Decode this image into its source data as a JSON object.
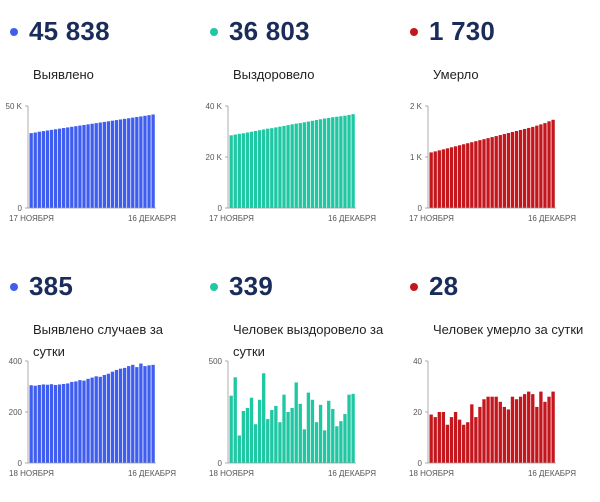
{
  "panels": [
    {
      "id": "detected-total",
      "value": "45 838",
      "label": "Выявлено",
      "color": "#3f5ef0",
      "chart_data": {
        "type": "bar",
        "x_start_label": "17 НОЯБРЯ",
        "x_end_label": "16 ДЕКАБРЯ",
        "yticks": [
          "0",
          "50 K"
        ],
        "ylim": [
          0,
          50000
        ],
        "values": [
          36700,
          37000,
          37400,
          37700,
          38000,
          38300,
          38600,
          38900,
          39200,
          39500,
          39800,
          40100,
          40400,
          40700,
          41000,
          41300,
          41600,
          41900,
          42200,
          42500,
          42800,
          43100,
          43400,
          43700,
          44000,
          44300,
          44600,
          44900,
          45200,
          45500,
          45838
        ]
      }
    },
    {
      "id": "recovered-total",
      "value": "36 803",
      "label": "Выздоровело",
      "color": "#1fc7a3",
      "chart_data": {
        "type": "bar",
        "x_start_label": "17 НОЯБРЯ",
        "x_end_label": "16 ДЕКАБРЯ",
        "yticks": [
          "0",
          "20 K",
          "40 K"
        ],
        "ylim": [
          0,
          40000
        ],
        "values": [
          28500,
          28800,
          29100,
          29300,
          29600,
          29900,
          30200,
          30500,
          30800,
          31100,
          31300,
          31600,
          31900,
          32200,
          32500,
          32800,
          33100,
          33300,
          33600,
          33900,
          34200,
          34500,
          34800,
          35100,
          35300,
          35600,
          35800,
          36000,
          36200,
          36500,
          36803
        ]
      }
    },
    {
      "id": "deaths-total",
      "value": "1 730",
      "label": "Умерло",
      "color": "#c4161c",
      "chart_data": {
        "type": "bar",
        "x_start_label": "17 НОЯБРЯ",
        "x_end_label": "16 ДЕКАБРЯ",
        "yticks": [
          "0",
          "1 K",
          "2 K"
        ],
        "ylim": [
          0,
          2000
        ],
        "values": [
          1090,
          1110,
          1130,
          1150,
          1170,
          1190,
          1210,
          1230,
          1250,
          1270,
          1290,
          1310,
          1330,
          1350,
          1370,
          1390,
          1410,
          1430,
          1450,
          1470,
          1490,
          1510,
          1530,
          1550,
          1570,
          1590,
          1615,
          1640,
          1665,
          1700,
          1730
        ]
      }
    },
    {
      "id": "detected-daily",
      "value": "385",
      "label": "Выявлено случаев за сутки",
      "color": "#3f5ef0",
      "chart_data": {
        "type": "bar",
        "x_start_label": "18 НОЯБРЯ",
        "x_end_label": "16 ДЕКАБРЯ",
        "yticks": [
          "0",
          "200",
          "400"
        ],
        "ylim": [
          0,
          400
        ],
        "values": [
          305,
          303,
          306,
          308,
          307,
          309,
          306,
          308,
          310,
          312,
          318,
          320,
          325,
          323,
          330,
          335,
          340,
          338,
          345,
          350,
          358,
          365,
          370,
          373,
          380,
          385,
          376,
          390,
          380,
          383,
          385
        ]
      }
    },
    {
      "id": "recovered-daily",
      "value": "339",
      "label": "Человек выздоровело за сутки",
      "color": "#1fc7a3",
      "chart_data": {
        "type": "bar",
        "x_start_label": "18 НОЯБРЯ",
        "x_end_label": "16 ДЕКАБРЯ",
        "yticks": [
          "0",
          "500"
        ],
        "ylim": [
          0,
          500
        ],
        "values": [
          330,
          420,
          135,
          255,
          270,
          320,
          190,
          310,
          440,
          215,
          260,
          280,
          200,
          335,
          250,
          270,
          395,
          290,
          165,
          345,
          310,
          200,
          285,
          160,
          305,
          265,
          180,
          205,
          240,
          335,
          339
        ]
      }
    },
    {
      "id": "deaths-daily",
      "value": "28",
      "label": "Человек умерло за сутки",
      "color": "#c4161c",
      "chart_data": {
        "type": "bar",
        "x_start_label": "18 НОЯБРЯ",
        "x_end_label": "16 ДЕКАБРЯ",
        "yticks": [
          "0",
          "20",
          "40"
        ],
        "ylim": [
          0,
          40
        ],
        "values": [
          19,
          18,
          20,
          20,
          15,
          18,
          20,
          17,
          15,
          16,
          23,
          18,
          22,
          25,
          26,
          26,
          26,
          24,
          22,
          21,
          26,
          25,
          26,
          27,
          28,
          27,
          22,
          28,
          24,
          26,
          28
        ]
      }
    }
  ]
}
